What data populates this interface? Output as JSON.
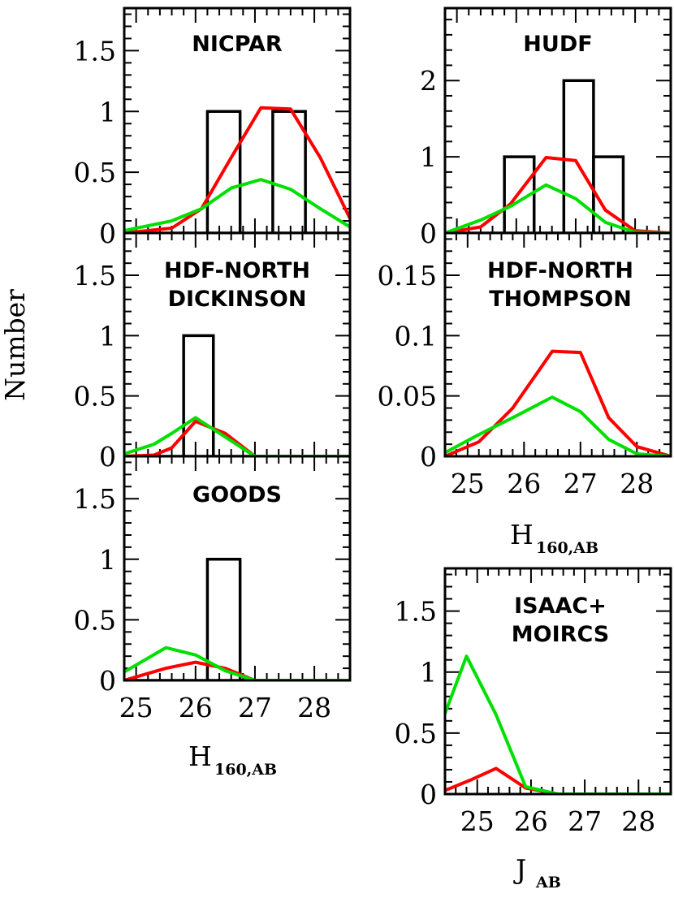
{
  "figure": {
    "ylabel": "Number",
    "xlabel_left": {
      "main": "H",
      "sub": "160,AB"
    },
    "xlabel_right_top": {
      "main": "H",
      "sub": "160,AB"
    },
    "xlabel_right_bottom": {
      "main": "J",
      "sub": "AB"
    }
  },
  "colors": {
    "histogram": "#000000",
    "red": "#ff0000",
    "green": "#00e000"
  },
  "chart_data": [
    {
      "id": "nicpar",
      "type": "line",
      "title_lines": [
        "NICPAR"
      ],
      "xlim": [
        24.8,
        28.6
      ],
      "ylim": [
        0,
        1.85
      ],
      "yticks": [
        0,
        0.5,
        1,
        1.5
      ],
      "ytick_labels": [
        "0",
        "0.5",
        "1",
        "1.5"
      ],
      "xticks": [
        25,
        26,
        27,
        28
      ],
      "xtick_labels": [],
      "histogram": [
        [
          26.2,
          26.75,
          1
        ],
        [
          27.3,
          27.85,
          1
        ]
      ],
      "series": [
        {
          "color": "red",
          "x": [
            24.8,
            25.6,
            26.1,
            26.6,
            27.1,
            27.6,
            28.1,
            28.6
          ],
          "y": [
            0.0,
            0.04,
            0.2,
            0.62,
            1.03,
            1.02,
            0.62,
            0.12
          ]
        },
        {
          "color": "green",
          "x": [
            24.8,
            25.6,
            26.1,
            26.6,
            27.1,
            27.6,
            28.1,
            28.6
          ],
          "y": [
            0.02,
            0.1,
            0.2,
            0.37,
            0.44,
            0.36,
            0.2,
            0.05
          ]
        }
      ]
    },
    {
      "id": "hudf",
      "type": "line",
      "title_lines": [
        "HUDF"
      ],
      "xlim": [
        24.8,
        28.6
      ],
      "ylim": [
        0,
        2.95
      ],
      "yticks": [
        0,
        1,
        2
      ],
      "ytick_labels": [
        "0",
        "1",
        "2"
      ],
      "xticks": [
        25,
        26,
        27,
        28
      ],
      "xtick_labels": [],
      "histogram": [
        [
          25.8,
          26.3,
          1
        ],
        [
          26.8,
          27.3,
          2
        ],
        [
          27.3,
          27.8,
          1
        ]
      ],
      "series": [
        {
          "color": "red",
          "x": [
            24.8,
            25.4,
            25.9,
            26.5,
            27.0,
            27.5,
            28.0,
            28.6
          ],
          "y": [
            0.0,
            0.08,
            0.38,
            0.99,
            0.95,
            0.3,
            0.03,
            0.0
          ]
        },
        {
          "color": "green",
          "x": [
            24.8,
            25.4,
            25.9,
            26.5,
            27.0,
            27.5,
            28.0,
            28.6
          ],
          "y": [
            0.0,
            0.17,
            0.35,
            0.63,
            0.45,
            0.14,
            0.01,
            0.0
          ]
        }
      ]
    },
    {
      "id": "hdfn-dickinson",
      "type": "line",
      "title_lines": [
        "HDF-NORTH",
        "DICKINSON"
      ],
      "xlim": [
        24.8,
        28.6
      ],
      "ylim": [
        0,
        1.85
      ],
      "yticks": [
        0,
        0.5,
        1,
        1.5
      ],
      "ytick_labels": [
        "0",
        "0.5",
        "1",
        "1.5"
      ],
      "xticks": [
        25,
        26,
        27,
        28
      ],
      "xtick_labels": [],
      "histogram": [
        [
          25.8,
          26.3,
          1
        ]
      ],
      "series": [
        {
          "color": "red",
          "x": [
            24.8,
            25.3,
            25.6,
            26.0,
            26.5,
            27.0,
            27.5,
            28.6
          ],
          "y": [
            0.0,
            0.01,
            0.07,
            0.29,
            0.19,
            0.0,
            0.0,
            0.0
          ]
        },
        {
          "color": "green",
          "x": [
            24.8,
            25.3,
            25.6,
            26.0,
            26.5,
            27.0,
            27.5,
            28.6
          ],
          "y": [
            0.02,
            0.1,
            0.19,
            0.32,
            0.16,
            0.0,
            0.0,
            0.0
          ]
        }
      ]
    },
    {
      "id": "hdfn-thompson",
      "type": "line",
      "title_lines": [
        "HDF-NORTH",
        "THOMPSON"
      ],
      "xlim": [
        24.6,
        28.6
      ],
      "ylim": [
        0,
        0.185
      ],
      "yticks": [
        0,
        0.05,
        0.1,
        0.15
      ],
      "ytick_labels": [
        "0",
        "0.05",
        "0.1",
        "0.15"
      ],
      "xticks": [
        25,
        26,
        27,
        28
      ],
      "xtick_labels": [
        "25",
        "26",
        "27",
        "28"
      ],
      "histogram": [],
      "series": [
        {
          "color": "red",
          "x": [
            24.6,
            25.2,
            25.8,
            26.5,
            27.0,
            27.5,
            28.0,
            28.6
          ],
          "y": [
            0.0,
            0.012,
            0.04,
            0.087,
            0.086,
            0.032,
            0.008,
            0.0
          ]
        },
        {
          "color": "green",
          "x": [
            24.6,
            25.2,
            25.8,
            26.5,
            27.0,
            27.5,
            28.0,
            28.6
          ],
          "y": [
            0.003,
            0.018,
            0.032,
            0.049,
            0.037,
            0.014,
            0.002,
            0.0
          ]
        }
      ]
    },
    {
      "id": "goods",
      "type": "line",
      "title_lines": [
        "GOODS"
      ],
      "xlim": [
        24.8,
        28.6
      ],
      "ylim": [
        0,
        1.85
      ],
      "yticks": [
        0,
        0.5,
        1,
        1.5
      ],
      "ytick_labels": [
        "0",
        "0.5",
        "1",
        "1.5"
      ],
      "xticks": [
        25,
        26,
        27,
        28
      ],
      "xtick_labels": [
        "25",
        "26",
        "27",
        "28"
      ],
      "histogram": [
        [
          26.2,
          26.75,
          1
        ]
      ],
      "series": [
        {
          "color": "red",
          "x": [
            24.8,
            25.5,
            26.0,
            26.5,
            27.0,
            27.5,
            28.0,
            28.6
          ],
          "y": [
            0.0,
            0.1,
            0.15,
            0.1,
            0.0,
            0.0,
            0.0,
            0.0
          ]
        },
        {
          "color": "green",
          "x": [
            24.8,
            25.5,
            26.0,
            26.5,
            27.0,
            27.5,
            28.0,
            28.6
          ],
          "y": [
            0.07,
            0.27,
            0.21,
            0.08,
            0.0,
            0.0,
            0.0,
            0.0
          ]
        }
      ]
    },
    {
      "id": "isaac-moircs",
      "type": "line",
      "title_lines": [
        "ISAAC+",
        "MOIRCS"
      ],
      "xlim": [
        24.4,
        28.6
      ],
      "ylim": [
        0,
        1.85
      ],
      "yticks": [
        0,
        0.5,
        1,
        1.5
      ],
      "ytick_labels": [
        "0",
        "0.5",
        "1",
        "1.5"
      ],
      "xticks": [
        25,
        26,
        27,
        28
      ],
      "xtick_labels": [
        "25",
        "26",
        "27",
        "28"
      ],
      "histogram": [],
      "series": [
        {
          "color": "red",
          "x": [
            24.4,
            24.9,
            25.35,
            25.9,
            26.5,
            27.0,
            28.6
          ],
          "y": [
            0.03,
            0.12,
            0.21,
            0.05,
            0.0,
            0.0,
            0.0
          ]
        },
        {
          "color": "green",
          "x": [
            24.4,
            24.8,
            25.35,
            25.9,
            26.5,
            27.0,
            28.6
          ],
          "y": [
            0.66,
            1.13,
            0.65,
            0.06,
            0.0,
            0.0,
            0.0
          ]
        }
      ]
    }
  ]
}
